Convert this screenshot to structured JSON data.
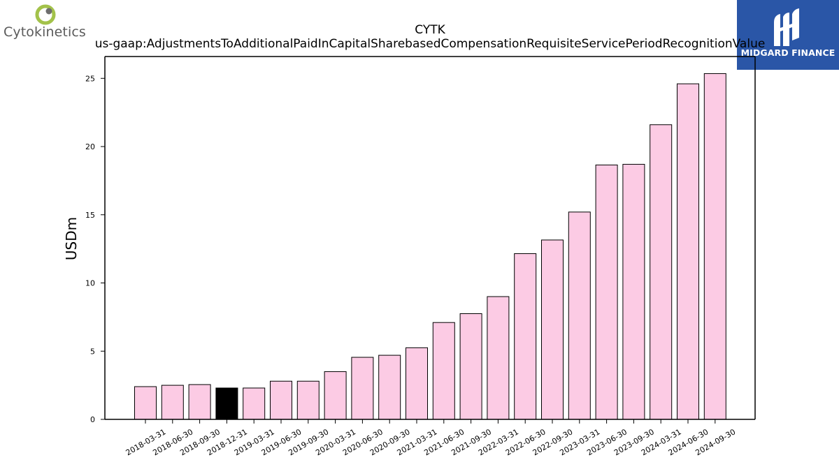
{
  "logos": {
    "left": {
      "name": "Cytokinetics",
      "icon": "cytokinetics-logo-icon",
      "text": "Cytokinetics",
      "ring_color": "#a3c24a",
      "dot_color": "#6e6e6e"
    },
    "right": {
      "name": "Midgard Finance",
      "icon": "midgard-finance-logo-icon",
      "text": "MIDGARD FINANCE",
      "background": "#2a56a7"
    }
  },
  "chart_data": {
    "type": "bar",
    "title": "CYTK",
    "subtitle": "us-gaap:AdjustmentsToAdditionalPaidInCapitalSharebasedCompensationRequisiteServicePeriodRecognitionValue",
    "xlabel": "",
    "ylabel": "USDm",
    "ylim": [
      0,
      26.6
    ],
    "yticks": [
      0,
      5,
      10,
      15,
      20,
      25
    ],
    "grid": false,
    "legend": "none",
    "bar_color": "#fccbe4",
    "highlight_color": "#000000",
    "highlight_index": 3,
    "categories": [
      "2018-03-31",
      "2018-06-30",
      "2018-09-30",
      "2018-12-31",
      "2019-03-31",
      "2019-06-30",
      "2019-09-30",
      "2020-03-31",
      "2020-06-30",
      "2020-09-30",
      "2021-03-31",
      "2021-06-30",
      "2021-09-30",
      "2022-03-31",
      "2022-06-30",
      "2022-09-30",
      "2023-03-31",
      "2023-06-30",
      "2023-09-30",
      "2024-03-31",
      "2024-06-30",
      "2024-09-30"
    ],
    "values": [
      2.4,
      2.5,
      2.55,
      2.3,
      2.3,
      2.8,
      2.8,
      3.5,
      4.55,
      4.7,
      5.25,
      7.1,
      7.75,
      9.0,
      12.15,
      13.15,
      15.2,
      18.65,
      18.7,
      21.6,
      24.6,
      25.35
    ]
  }
}
